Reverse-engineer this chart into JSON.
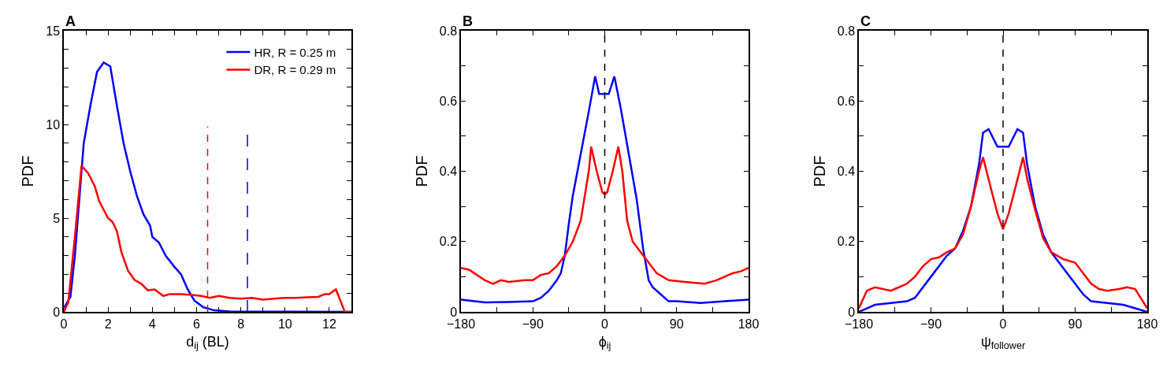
{
  "chart_data": [
    {
      "type": "line",
      "title": "A",
      "xlabel": "d$_{ij}$ (BL)",
      "ylabel": "PDF",
      "xlim": [
        0,
        13
      ],
      "ylim": [
        0,
        15
      ],
      "xticks": [
        0,
        {
          "value": 1,
          "label": null
        },
        2,
        {
          "value": 3,
          "label": null
        },
        4,
        {
          "value": 5,
          "label": null
        },
        6,
        {
          "value": 7,
          "label": null
        },
        8,
        {
          "value": 9,
          "label": null
        },
        10,
        {
          "value": 11,
          "label": null
        },
        12,
        {
          "value": 13,
          "label": null
        }
      ],
      "yticks": [
        0,
        {
          "value": 1,
          "label": null
        },
        {
          "value": 2,
          "label": null
        },
        {
          "value": 3,
          "label": null
        },
        {
          "value": 4,
          "label": null
        },
        5,
        {
          "value": 6,
          "label": null
        },
        {
          "value": 7,
          "label": null
        },
        {
          "value": 8,
          "label": null
        },
        {
          "value": 9,
          "label": null
        },
        10,
        {
          "value": 11,
          "label": null
        },
        {
          "value": 12,
          "label": null
        },
        {
          "value": 13,
          "label": null
        },
        {
          "value": 14,
          "label": null
        },
        15
      ],
      "legend": "top right",
      "line_style": "solid",
      "series": [
        {
          "name": "HR, R = 0.25 m",
          "color": "#0000ff",
          "x": [
            0,
            0.3,
            0.5,
            0.7,
            0.9,
            1.2,
            1.5,
            1.8,
            2.1,
            2.4,
            2.7,
            3,
            3.3,
            3.6,
            3.9,
            4.0,
            4.3,
            4.6,
            5.0,
            5.3,
            5.6,
            5.9,
            6.3,
            6.8,
            7.5,
            13
          ],
          "values": [
            0.2,
            0.8,
            3,
            6,
            9,
            11,
            12.8,
            13.3,
            13.1,
            11,
            9,
            7.5,
            6.2,
            5.2,
            4.6,
            4.0,
            3.7,
            3.0,
            2.4,
            2.0,
            1.2,
            0.6,
            0.25,
            0.08,
            0.02,
            0
          ]
        },
        {
          "name": "DR, R = 0.29 m",
          "color": "#ff0000",
          "x": [
            0,
            0.2,
            0.5,
            0.8,
            1.1,
            1.4,
            1.6,
            2.0,
            2.2,
            2.4,
            2.6,
            2.9,
            3.2,
            3.5,
            3.8,
            4.1,
            4.5,
            4.8,
            5.3,
            5.8,
            6.2,
            6.6,
            7.0,
            7.5,
            8,
            8.5,
            9,
            9.5,
            10,
            10.5,
            11,
            11.5,
            11.8,
            12.0,
            12.3,
            12.7,
            13
          ],
          "values": [
            0,
            0.5,
            4,
            7.8,
            7.4,
            6.7,
            5.9,
            5,
            4.8,
            4.3,
            3.2,
            2.2,
            1.7,
            1.5,
            1.15,
            1.2,
            0.85,
            0.95,
            0.95,
            0.9,
            0.85,
            0.75,
            0.85,
            0.75,
            0.7,
            0.75,
            0.65,
            0.7,
            0.75,
            0.75,
            0.78,
            0.8,
            0.95,
            0.95,
            1.2,
            0,
            0
          ]
        }
      ],
      "ref_lines": [
        {
          "axis": "x",
          "value": 6.5,
          "color": "#ff0000",
          "line_style": "dashed"
        },
        {
          "axis": "x",
          "value": 8.3,
          "color": "#0000ff",
          "line_style": "longdash"
        }
      ]
    },
    {
      "type": "line",
      "title": "B",
      "xlabel": "ϕ$_{ij}$",
      "ylabel": "PDF",
      "xlim": [
        -180,
        180
      ],
      "ylim": [
        0,
        0.8
      ],
      "xticks": [
        {
          "value": -180,
          "label": "−180"
        },
        {
          "value": -135,
          "label": null
        },
        {
          "value": -90,
          "label": "−90"
        },
        {
          "value": -45,
          "label": null
        },
        0,
        {
          "value": 45,
          "label": null
        },
        90,
        {
          "value": 135,
          "label": null
        },
        180
      ],
      "yticks": [
        0,
        {
          "value": 0.1,
          "label": null
        },
        0.2,
        {
          "value": 0.3,
          "label": null
        },
        0.4,
        {
          "value": 0.5,
          "label": null
        },
        0.6,
        {
          "value": 0.7,
          "label": null
        },
        0.8
      ],
      "legend": false,
      "line_style": "solid",
      "series": [
        {
          "color": "#0000ff",
          "x": [
            -180,
            -150,
            -120,
            -90,
            -80,
            -70,
            -60,
            -55,
            -50,
            -45,
            -40,
            -30,
            -20,
            -12,
            -7,
            5,
            12,
            20,
            30,
            40,
            48,
            55,
            60,
            70,
            80,
            90,
            120,
            150,
            180
          ],
          "values": [
            0.035,
            0.027,
            0.028,
            0.03,
            0.04,
            0.06,
            0.09,
            0.11,
            0.16,
            0.25,
            0.33,
            0.45,
            0.57,
            0.67,
            0.62,
            0.62,
            0.67,
            0.58,
            0.45,
            0.32,
            0.18,
            0.09,
            0.07,
            0.05,
            0.03,
            0.03,
            0.025,
            0.03,
            0.035
          ]
        },
        {
          "color": "#ff0000",
          "x": [
            -180,
            -170,
            -160,
            -150,
            -140,
            -130,
            -120,
            -100,
            -90,
            -80,
            -70,
            -60,
            -50,
            -40,
            -30,
            -25,
            -20,
            -17,
            -10,
            -3,
            0,
            3,
            10,
            17,
            22,
            28,
            35,
            45,
            55,
            65,
            80,
            100,
            125,
            140,
            150,
            160,
            170,
            180
          ],
          "values": [
            0.125,
            0.12,
            0.105,
            0.09,
            0.08,
            0.09,
            0.085,
            0.09,
            0.09,
            0.105,
            0.11,
            0.13,
            0.16,
            0.2,
            0.26,
            0.33,
            0.4,
            0.47,
            0.4,
            0.34,
            0.335,
            0.34,
            0.4,
            0.47,
            0.4,
            0.26,
            0.2,
            0.17,
            0.14,
            0.11,
            0.09,
            0.085,
            0.08,
            0.09,
            0.1,
            0.11,
            0.115,
            0.125
          ]
        }
      ],
      "ref_lines": [
        {
          "axis": "x",
          "value": 0,
          "color": "#000000",
          "line_style": "dashed"
        }
      ]
    },
    {
      "type": "line",
      "title": "C",
      "xlabel": "ψ$_{follower}$",
      "ylabel": "PDF",
      "xlim": [
        -180,
        180
      ],
      "ylim": [
        0,
        0.8
      ],
      "xticks": [
        {
          "value": -180,
          "label": "−180"
        },
        {
          "value": -135,
          "label": null
        },
        {
          "value": -90,
          "label": "−90"
        },
        {
          "value": -45,
          "label": null
        },
        0,
        {
          "value": 45,
          "label": null
        },
        90,
        {
          "value": 135,
          "label": null
        },
        180
      ],
      "yticks": [
        0,
        {
          "value": 0.1,
          "label": null
        },
        0.2,
        {
          "value": 0.3,
          "label": null
        },
        0.4,
        {
          "value": 0.5,
          "label": null
        },
        0.6,
        {
          "value": 0.7,
          "label": null
        },
        0.8
      ],
      "legend": false,
      "line_style": "solid",
      "series": [
        {
          "color": "#0000ff",
          "x": [
            -180,
            -170,
            -160,
            -140,
            -120,
            -110,
            -100,
            -90,
            -80,
            -70,
            -60,
            -50,
            -40,
            -30,
            -25,
            -18,
            -7,
            7,
            18,
            25,
            30,
            40,
            50,
            60,
            70,
            80,
            90,
            100,
            110,
            130,
            150,
            165,
            180
          ],
          "values": [
            0,
            0.01,
            0.02,
            0.025,
            0.03,
            0.04,
            0.07,
            0.1,
            0.13,
            0.16,
            0.18,
            0.23,
            0.3,
            0.42,
            0.51,
            0.52,
            0.47,
            0.47,
            0.52,
            0.51,
            0.42,
            0.3,
            0.22,
            0.17,
            0.14,
            0.11,
            0.08,
            0.05,
            0.03,
            0.025,
            0.02,
            0.01,
            0
          ]
        },
        {
          "color": "#ff0000",
          "x": [
            -180,
            -170,
            -160,
            -150,
            -140,
            -130,
            -120,
            -110,
            -100,
            -90,
            -80,
            -70,
            -60,
            -50,
            -40,
            -30,
            -25,
            -15,
            -7,
            0,
            7,
            15,
            25,
            30,
            40,
            50,
            60,
            75,
            90,
            100,
            110,
            120,
            130,
            145,
            155,
            165,
            180
          ],
          "values": [
            0.01,
            0.06,
            0.07,
            0.065,
            0.06,
            0.07,
            0.08,
            0.1,
            0.13,
            0.15,
            0.155,
            0.17,
            0.18,
            0.22,
            0.3,
            0.4,
            0.44,
            0.35,
            0.28,
            0.235,
            0.28,
            0.35,
            0.44,
            0.38,
            0.29,
            0.21,
            0.17,
            0.15,
            0.14,
            0.11,
            0.08,
            0.065,
            0.06,
            0.065,
            0.07,
            0.065,
            0.01
          ]
        }
      ],
      "ref_lines": [
        {
          "axis": "x",
          "value": 0,
          "color": "#000000",
          "line_style": "dashed"
        }
      ]
    }
  ]
}
